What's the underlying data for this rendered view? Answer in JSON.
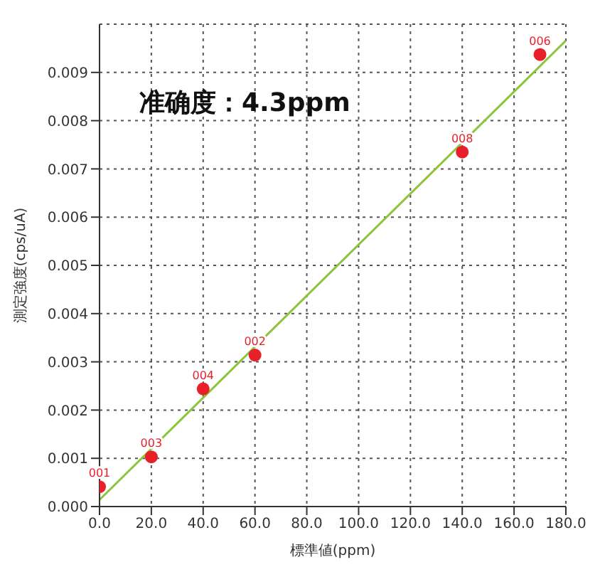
{
  "chart_data": {
    "type": "scatter",
    "xlabel": "標準値(ppm)",
    "ylabel": "測定強度(cps/uA)",
    "annotations": [
      "准确度：4.3ppm",
      {
        "text": "001",
        "x": 0,
        "y": 0.00041
      },
      {
        "text": "003",
        "x": 20,
        "y": 0.00103
      },
      {
        "text": "004",
        "x": 40,
        "y": 0.00244
      },
      {
        "text": "002",
        "x": 60,
        "y": 0.00314
      },
      {
        "text": "008",
        "x": 140,
        "y": 0.00735
      },
      {
        "text": "006",
        "x": 170,
        "y": 0.00937
      }
    ],
    "xlim": [
      0,
      180
    ],
    "xticks": [
      {
        "value": 0,
        "label": "0.0"
      },
      {
        "value": 20,
        "label": "20.0"
      },
      {
        "value": 40,
        "label": "40.0"
      },
      {
        "value": 60,
        "label": "60.0"
      },
      {
        "value": 80,
        "label": "80.0"
      },
      {
        "value": 100,
        "label": "100.0"
      },
      {
        "value": 120,
        "label": "120.0"
      },
      {
        "value": 140,
        "label": "140.0"
      },
      {
        "value": 160,
        "label": "160.0"
      },
      {
        "value": 180,
        "label": "180.0"
      }
    ],
    "ylim": [
      0,
      0.01
    ],
    "yticks": [
      {
        "value": 0,
        "label": "0.000"
      },
      {
        "value": 0.001,
        "label": "0.001"
      },
      {
        "value": 0.002,
        "label": "0.002"
      },
      {
        "value": 0.003,
        "label": "0.003"
      },
      {
        "value": 0.004,
        "label": "0.004"
      },
      {
        "value": 0.005,
        "label": "0.005"
      },
      {
        "value": 0.006,
        "label": "0.006"
      },
      {
        "value": 0.007,
        "label": "0.007"
      },
      {
        "value": 0.008,
        "label": "0.008"
      },
      {
        "value": 0.009,
        "label": "0.009"
      }
    ],
    "grid": true,
    "legend": false,
    "series": [
      {
        "color": "#e8202a",
        "marker": "circle",
        "x": [
          0,
          20,
          40,
          60,
          140,
          170
        ],
        "values": [
          0.00041,
          0.00103,
          0.00244,
          0.00314,
          0.00735,
          0.00937
        ]
      },
      {
        "type": "line",
        "color": "#8cc43c",
        "marker": "none",
        "x": [
          0,
          180
        ],
        "values": [
          0.00014,
          0.00966
        ],
        "line_style": "solid"
      }
    ]
  }
}
